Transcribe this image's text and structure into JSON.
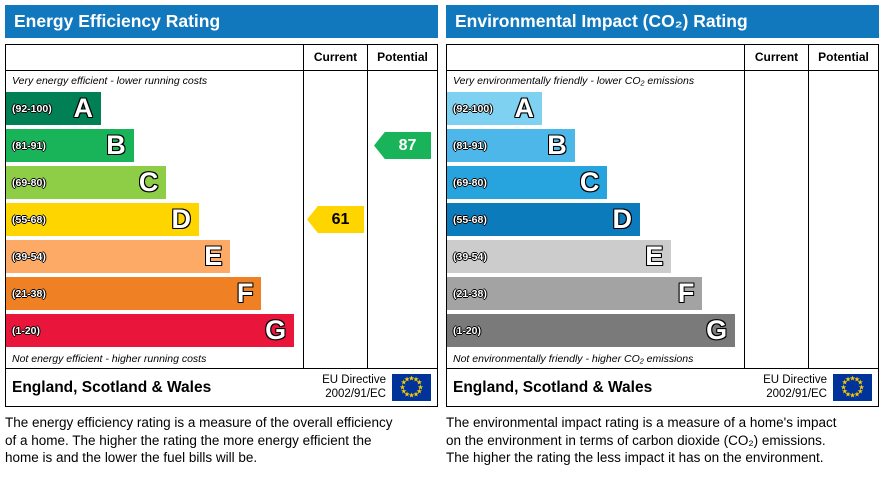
{
  "panels": [
    {
      "title": "Energy Efficiency Rating",
      "col_current": "Current",
      "col_potential": "Potential",
      "top_note": "Very energy efficient - lower running costs",
      "bottom_note": "Not energy efficient - higher running costs",
      "bands": [
        {
          "range": "(92-100)",
          "letter": "A",
          "color": "#008054"
        },
        {
          "range": "(81-91)",
          "letter": "B",
          "color": "#19b459"
        },
        {
          "range": "(69-80)",
          "letter": "C",
          "color": "#8dce46"
        },
        {
          "range": "(55-68)",
          "letter": "D",
          "color": "#ffd500"
        },
        {
          "range": "(39-54)",
          "letter": "E",
          "color": "#fcaa65"
        },
        {
          "range": "(21-38)",
          "letter": "F",
          "color": "#ef8023"
        },
        {
          "range": "(1-20)",
          "letter": "G",
          "color": "#e9153b"
        }
      ],
      "current": {
        "value": "61",
        "color": "#ffd500",
        "text_color": "#000000"
      },
      "potential": {
        "value": "87",
        "color": "#19b459",
        "text_color": "#ffffff"
      },
      "region": "England, Scotland & Wales",
      "directive_line1": "EU Directive",
      "directive_line2": "2002/91/EC",
      "description": "The energy efficiency rating is a measure of the overall efficiency of a home. The higher the rating the more energy efficient the home is and the lower the fuel bills will be."
    },
    {
      "title": "Environmental Impact (CO₂) Rating",
      "col_current": "Current",
      "col_potential": "Potential",
      "top_note": "Very environmentally friendly - lower CO₂ emissions",
      "bottom_note": "Not environmentally friendly - higher CO₂ emissions",
      "bands": [
        {
          "range": "(92-100)",
          "letter": "A",
          "color": "#7fd1f2"
        },
        {
          "range": "(81-91)",
          "letter": "B",
          "color": "#4cb7e8"
        },
        {
          "range": "(69-80)",
          "letter": "C",
          "color": "#27a3dd"
        },
        {
          "range": "(55-68)",
          "letter": "D",
          "color": "#0c7bbb"
        },
        {
          "range": "(39-54)",
          "letter": "E",
          "color": "#cccccc"
        },
        {
          "range": "(21-38)",
          "letter": "F",
          "color": "#a3a3a3"
        },
        {
          "range": "(1-20)",
          "letter": "G",
          "color": "#7a7a7a"
        }
      ],
      "region": "England, Scotland & Wales",
      "directive_line1": "EU Directive",
      "directive_line2": "2002/91/EC",
      "description": "The environmental impact rating is a measure of a home's impact on the environment in terms of carbon dioxide (CO₂) emissions. The higher the rating the less impact it has on the environment."
    }
  ],
  "chart_data": [
    {
      "type": "bar",
      "title": "Energy Efficiency Rating",
      "categories": [
        "A",
        "B",
        "C",
        "D",
        "E",
        "F",
        "G"
      ],
      "band_ranges": [
        "92-100",
        "81-91",
        "69-80",
        "55-68",
        "39-54",
        "21-38",
        "1-20"
      ],
      "ylim": [
        1,
        100
      ],
      "series": [
        {
          "name": "Current",
          "values": [
            61
          ],
          "band": "D"
        },
        {
          "name": "Potential",
          "values": [
            87
          ],
          "band": "B"
        }
      ]
    },
    {
      "type": "bar",
      "title": "Environmental Impact (CO₂) Rating",
      "categories": [
        "A",
        "B",
        "C",
        "D",
        "E",
        "F",
        "G"
      ],
      "band_ranges": [
        "92-100",
        "81-91",
        "69-80",
        "55-68",
        "39-54",
        "21-38",
        "1-20"
      ],
      "ylim": [
        1,
        100
      ],
      "series": []
    }
  ]
}
